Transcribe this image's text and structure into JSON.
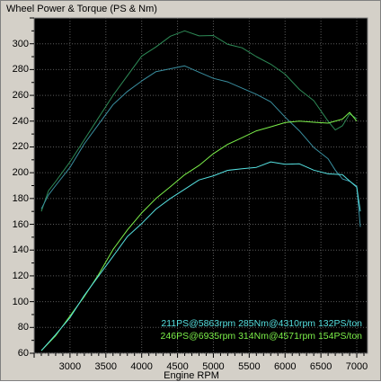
{
  "chart_data": {
    "type": "line",
    "title": "Wheel Power & Torque (PS & Nm)",
    "xlabel": "Engine RPM",
    "ylabel": "",
    "xlim": [
      2500,
      7150
    ],
    "ylim": [
      60,
      320
    ],
    "xticks": [
      3000,
      3500,
      4000,
      4500,
      5000,
      5500,
      6000,
      6500,
      7000
    ],
    "yticks": [
      60,
      80,
      100,
      120,
      140,
      160,
      180,
      200,
      220,
      240,
      260,
      280,
      300
    ],
    "grid": true,
    "background": "#000000",
    "annotations": [
      {
        "text": "211PS@5863rpm 285Nm@4310rpm 132PS/ton",
        "color": "#55e0e0"
      },
      {
        "text": "246PS@6935rpm 314Nm@4571rpm 154PS/ton",
        "color": "#7cf04a"
      }
    ],
    "series": [
      {
        "color": "#2e8b57",
        "x": [
          2600,
          2700,
          2800,
          3000,
          3200,
          3400,
          3600,
          3800,
          4000,
          4200,
          4400,
          4600,
          4800,
          5000,
          5200,
          5400,
          5600,
          5800,
          6000,
          6200,
          6400,
          6600,
          6700,
          6800,
          6900,
          7000
        ],
        "y": [
          170,
          186,
          194,
          208,
          226,
          242,
          260,
          276,
          290,
          298,
          305,
          310,
          307,
          306,
          300,
          296,
          290,
          285,
          276,
          265,
          255,
          240,
          234,
          236,
          246,
          242
        ]
      },
      {
        "color": "#3a8fa0",
        "x": [
          2600,
          2700,
          2800,
          3000,
          3200,
          3400,
          3600,
          3800,
          4000,
          4200,
          4400,
          4600,
          4800,
          5000,
          5200,
          5400,
          5600,
          5800,
          6000,
          6200,
          6400,
          6600,
          6700,
          6800,
          6900,
          7000,
          7050
        ],
        "y": [
          172,
          182,
          190,
          205,
          222,
          238,
          252,
          263,
          272,
          278,
          281,
          282,
          278,
          274,
          270,
          266,
          260,
          255,
          244,
          232,
          220,
          210,
          202,
          196,
          193,
          190,
          158
        ]
      },
      {
        "color": "#7cf04a",
        "x": [
          2600,
          2800,
          3000,
          3200,
          3400,
          3600,
          3800,
          4000,
          4200,
          4400,
          4600,
          4800,
          5000,
          5200,
          5400,
          5600,
          5800,
          6000,
          6200,
          6400,
          6600,
          6800,
          6900,
          7000
        ],
        "y": [
          62,
          74,
          88,
          104,
          122,
          140,
          156,
          168,
          180,
          190,
          198,
          206,
          214,
          222,
          228,
          232,
          236,
          238,
          240,
          240,
          238,
          242,
          246,
          240
        ]
      },
      {
        "color": "#55e0e0",
        "x": [
          2600,
          2800,
          3000,
          3200,
          3400,
          3600,
          3800,
          4000,
          4200,
          4400,
          4600,
          4800,
          5000,
          5200,
          5400,
          5600,
          5800,
          6000,
          6200,
          6400,
          6600,
          6800,
          6900,
          7000,
          7050
        ],
        "y": [
          62,
          74,
          88,
          104,
          120,
          136,
          150,
          161,
          171,
          180,
          188,
          194,
          198,
          201,
          203,
          205,
          208,
          207,
          206,
          202,
          200,
          198,
          194,
          188,
          170
        ]
      }
    ]
  }
}
